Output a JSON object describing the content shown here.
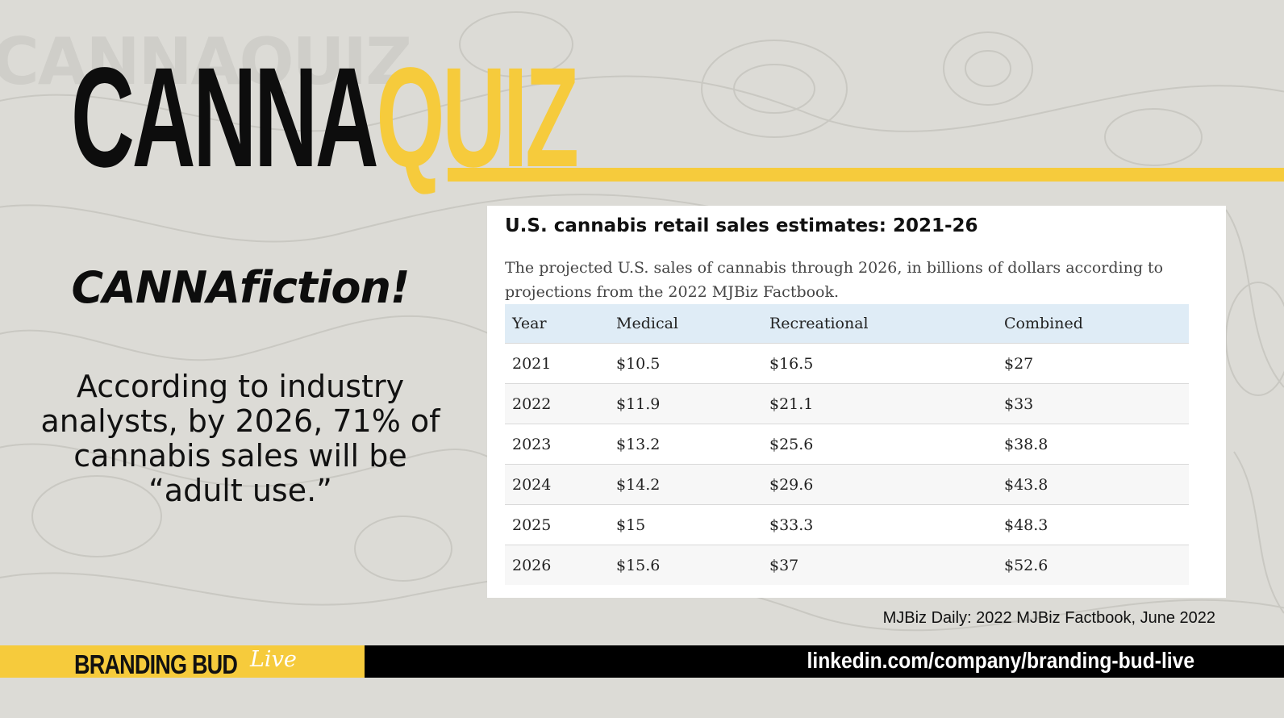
{
  "logo": {
    "part1": "CANNA",
    "part2": "QUIZ"
  },
  "headline": "CANNAfiction!",
  "claim": "According to industry analysts, by 2026, 71% of cannabis sales will be “adult use.”",
  "card": {
    "title": "U.S. cannabis retail sales estimates: 2021-26",
    "description": "The projected U.S. sales of cannabis through 2026, in billions of dollars according to projections from the 2022 MJBiz Factbook.",
    "table": {
      "headers": [
        "Year",
        "Medical",
        "Recreational",
        "Combined"
      ],
      "rows": [
        [
          "2021",
          "$10.5",
          "$16.5",
          "$27"
        ],
        [
          "2022",
          "$11.9",
          "$21.1",
          "$33"
        ],
        [
          "2023",
          "$13.2",
          "$25.6",
          "$38.8"
        ],
        [
          "2024",
          "$14.2",
          "$29.6",
          "$43.8"
        ],
        [
          "2025",
          "$15",
          "$33.3",
          "$48.3"
        ],
        [
          "2026",
          "$15.6",
          "$37",
          "$52.6"
        ]
      ]
    }
  },
  "source": "MJBiz Daily: 2022 MJBiz Factbook, June 2022",
  "footer": {
    "brand": "BRANDING BUD",
    "brand_script": "Live",
    "link": "linkedin.com/company/branding-bud-live"
  },
  "colors": {
    "accent": "#f6cb3c",
    "dark": "#0d0d0d",
    "table_header": "#dfecf6"
  }
}
